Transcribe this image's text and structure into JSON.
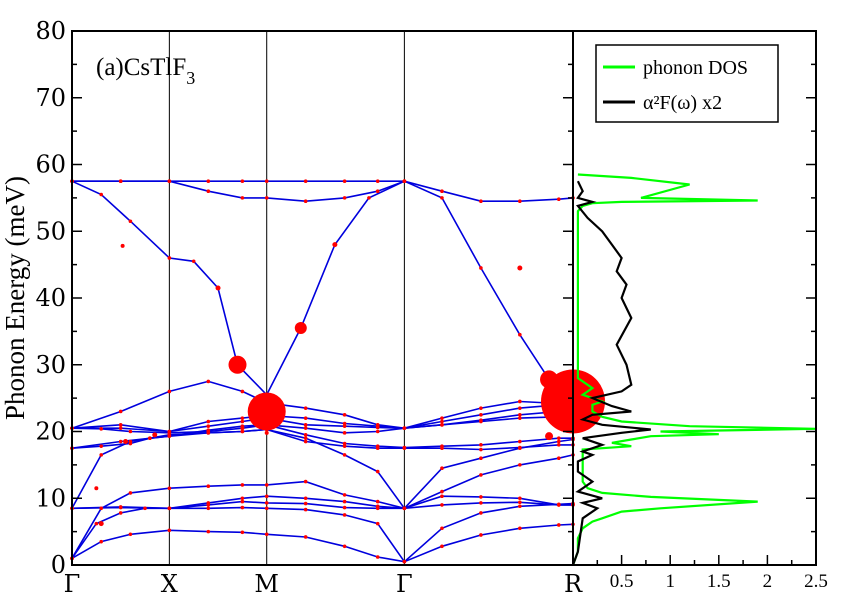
{
  "chart_data": [
    {
      "type": "line",
      "title": "(a)CsTlF",
      "title_subscript": "3",
      "ylabel": "Phonon Energy (meV)",
      "ylim": [
        0,
        80
      ],
      "yticks": [
        0,
        10,
        20,
        30,
        40,
        50,
        60,
        70,
        80
      ],
      "k_points": [
        {
          "label": "Γ",
          "pos": 0.0
        },
        {
          "label": "X",
          "pos": 1.0
        },
        {
          "label": "M",
          "pos": 2.0
        },
        {
          "label": "Γ",
          "pos": 3.414
        },
        {
          "label": "R",
          "pos": 5.146
        }
      ],
      "band_color": "#0000dd",
      "coupling_color": "#ff0000",
      "bands": [
        {
          "x": [
            0,
            0.3,
            0.6,
            1.0,
            1.4,
            1.75,
            2.0,
            2.4,
            2.8,
            3.14,
            3.414,
            3.8,
            4.2,
            4.6,
            5.0,
            5.146
          ],
          "y": [
            1.0,
            3.5,
            4.6,
            5.2,
            5.0,
            4.9,
            4.6,
            4.2,
            2.8,
            1.2,
            0.5,
            2.8,
            4.5,
            5.5,
            6.0,
            6.1
          ]
        },
        {
          "x": [
            0,
            0.25,
            0.5,
            0.75,
            1.0,
            1.4,
            1.75,
            2.0,
            2.4,
            2.8,
            3.14,
            3.414,
            3.8,
            4.2,
            4.6,
            5.0,
            5.146
          ],
          "y": [
            1.0,
            6.2,
            7.8,
            8.5,
            8.5,
            8.5,
            8.6,
            8.5,
            8.3,
            7.5,
            6.2,
            0.5,
            5.5,
            7.8,
            8.8,
            9.1,
            9.2
          ]
        },
        {
          "x": [
            0,
            0.5,
            1.0,
            1.4,
            1.75,
            2.0,
            2.4,
            2.8,
            3.14,
            3.414,
            3.8,
            4.2,
            4.6,
            5.0,
            5.146
          ],
          "y": [
            8.5,
            8.6,
            8.5,
            9.0,
            9.5,
            9.3,
            9.2,
            8.6,
            8.5,
            8.5,
            9.0,
            9.3,
            9.4,
            9.0,
            9.0
          ]
        },
        {
          "x": [
            0,
            0.5,
            1.0,
            1.4,
            1.75,
            2.0,
            2.4,
            2.8,
            3.14,
            3.414,
            3.8,
            4.2,
            4.6,
            5.0,
            5.146
          ],
          "y": [
            8.5,
            8.7,
            8.5,
            9.3,
            10.0,
            10.3,
            10.0,
            9.5,
            8.8,
            8.5,
            10.3,
            10.2,
            10.0,
            9.0,
            9.0
          ]
        },
        {
          "x": [
            0,
            0.3,
            0.6,
            1.0,
            1.4,
            1.75,
            2.0,
            2.4,
            2.8,
            3.14,
            3.414,
            3.8,
            4.2,
            4.6,
            5.0,
            5.146
          ],
          "y": [
            1.0,
            8.5,
            10.8,
            11.5,
            11.8,
            12.0,
            12.0,
            12.5,
            10.5,
            9.5,
            8.5,
            11.0,
            13.5,
            15.0,
            16.0,
            16.5
          ]
        },
        {
          "x": [
            0,
            0.3,
            0.6,
            0.8,
            1.0,
            1.4,
            1.75,
            2.0,
            2.4,
            2.8,
            3.14,
            3.414,
            3.8,
            4.2,
            4.6,
            5.0,
            5.146
          ],
          "y": [
            8.5,
            16.5,
            18.5,
            19.0,
            19.3,
            19.8,
            20.0,
            20.3,
            19.0,
            16.5,
            14.0,
            8.5,
            14.5,
            16.0,
            17.5,
            18.5,
            18.8
          ]
        },
        {
          "x": [
            0,
            0.3,
            0.6,
            0.8,
            1.0,
            1.4,
            1.75,
            2.0,
            2.4,
            2.8,
            3.14,
            3.414,
            3.8,
            4.2,
            4.6,
            5.0,
            5.146
          ],
          "y": [
            17.5,
            17.8,
            18.2,
            19.0,
            19.5,
            19.8,
            20.0,
            20.3,
            18.5,
            17.8,
            17.5,
            17.5,
            17.5,
            17.3,
            17.6,
            18.0,
            18.0
          ]
        },
        {
          "x": [
            0,
            0.5,
            1.0,
            1.4,
            1.75,
            2.0,
            2.4,
            2.8,
            3.14,
            3.414,
            3.8,
            4.2,
            4.6,
            5.0,
            5.146
          ],
          "y": [
            17.5,
            18.5,
            19.3,
            20.2,
            20.8,
            21.0,
            19.5,
            18.2,
            17.8,
            17.6,
            17.8,
            18.0,
            18.5,
            19.0,
            19.0
          ]
        },
        {
          "x": [
            0,
            0.3,
            0.6,
            1.0,
            1.4,
            1.75,
            2.0,
            2.4,
            2.8,
            3.14,
            3.414,
            3.8,
            4.2,
            4.6,
            5.0,
            5.146
          ],
          "y": [
            20.5,
            20.4,
            20.0,
            19.8,
            20.0,
            20.5,
            21.0,
            20.5,
            19.8,
            20.0,
            20.5,
            21.0,
            21.5,
            22.0,
            22.2,
            22.3
          ]
        },
        {
          "x": [
            0,
            0.5,
            1.0,
            1.4,
            1.75,
            2.0,
            2.4,
            2.8,
            3.14,
            3.414,
            3.8,
            4.2,
            4.6,
            5.0,
            5.146
          ],
          "y": [
            20.5,
            20.5,
            20.0,
            20.8,
            21.5,
            22.0,
            21.0,
            20.8,
            20.6,
            20.5,
            21.0,
            21.7,
            22.5,
            23.0,
            23.0
          ]
        },
        {
          "x": [
            0,
            0.5,
            1.0,
            1.4,
            1.75,
            2.0,
            2.4,
            2.8,
            3.14,
            3.414,
            3.8,
            4.2,
            4.6,
            5.0,
            5.146
          ],
          "y": [
            20.5,
            21.0,
            20.0,
            21.5,
            22.0,
            22.4,
            22.0,
            21.2,
            20.8,
            20.5,
            21.5,
            22.5,
            23.5,
            24.0,
            24.0
          ]
        },
        {
          "x": [
            0,
            0.5,
            1.0,
            1.4,
            1.75,
            2.0,
            2.4,
            2.8,
            3.14,
            3.414,
            3.8,
            4.2,
            4.6,
            5.0,
            5.146
          ],
          "y": [
            20.5,
            23.0,
            26.0,
            27.5,
            26.0,
            24.3,
            23.5,
            22.5,
            21.0,
            20.5,
            22.0,
            23.5,
            24.5,
            24.2,
            24.0
          ]
        },
        {
          "x": [
            0,
            0.3,
            0.6,
            1.0,
            1.25,
            1.5,
            1.7,
            2.0,
            2.35,
            2.7,
            3.05,
            3.414
          ],
          "y": [
            57.5,
            55.5,
            51.5,
            46.0,
            45.5,
            41.5,
            30.0,
            25.5,
            35.5,
            48.0,
            55.0,
            57.5
          ]
        },
        {
          "x": [
            3.414,
            3.8,
            4.2,
            4.6,
            4.9,
            5.146
          ],
          "y": [
            57.5,
            55.0,
            44.5,
            34.5,
            27.8,
            24.0
          ]
        },
        {
          "x": [
            0,
            0.5,
            1.0,
            1.4,
            1.75,
            2.0,
            2.4,
            2.8,
            3.14,
            3.414,
            3.8,
            4.2,
            4.6,
            5.0,
            5.146
          ],
          "y": [
            57.5,
            57.5,
            57.5,
            57.5,
            57.5,
            57.5,
            57.5,
            57.5,
            57.5,
            57.5,
            56.0,
            54.5,
            54.5,
            54.8,
            55.0
          ]
        },
        {
          "x": [
            0,
            0.5,
            1.0,
            1.4,
            1.75,
            2.0,
            2.4,
            2.8,
            3.14,
            3.414
          ],
          "y": [
            57.5,
            57.5,
            57.5,
            56.0,
            55.0,
            55.0,
            54.5,
            55.0,
            56.0,
            57.5
          ]
        }
      ],
      "coupling_points": [
        {
          "x": 1.5,
          "y": 41.5,
          "size": 2.5
        },
        {
          "x": 0.52,
          "y": 47.8,
          "size": 2.0
        },
        {
          "x": 1.7,
          "y": 30.0,
          "size": 9
        },
        {
          "x": 2.35,
          "y": 35.5,
          "size": 6
        },
        {
          "x": 2.7,
          "y": 48.0,
          "size": 2.5
        },
        {
          "x": 2.0,
          "y": 23.0,
          "size": 19
        },
        {
          "x": 4.6,
          "y": 44.5,
          "size": 2.5
        },
        {
          "x": 4.9,
          "y": 27.8,
          "size": 9
        },
        {
          "x": 5.146,
          "y": 24.5,
          "size": 32
        },
        {
          "x": 4.9,
          "y": 19.3,
          "size": 4
        },
        {
          "x": 0.3,
          "y": 6.2,
          "size": 2.5
        },
        {
          "x": 0.55,
          "y": 18.5,
          "size": 2.5
        },
        {
          "x": 0.85,
          "y": 19.5,
          "size": 2.5
        },
        {
          "x": 0.25,
          "y": 11.5,
          "size": 2
        },
        {
          "x": 2.0,
          "y": 19.8,
          "size": 2
        },
        {
          "x": 2.0,
          "y": 21.5,
          "size": 2
        },
        {
          "x": 1.75,
          "y": 20.5,
          "size": 2
        }
      ]
    },
    {
      "type": "line",
      "xlim": [
        0,
        2.5
      ],
      "xticks": [
        0.5,
        1,
        1.5,
        2,
        2.5
      ],
      "ylim": [
        0,
        80
      ],
      "legend": [
        {
          "label": "phonon DOS",
          "color": "#00ff00"
        },
        {
          "label": "α²F(ω) x2",
          "color": "#000000"
        }
      ],
      "legend_position": "top-right",
      "series": [
        {
          "name": "phonon DOS",
          "color": "#00ff00",
          "x": [
            0.0,
            0.05,
            0.05,
            0.1,
            0.2,
            0.3,
            0.5,
            0.9,
            1.9,
            0.8,
            0.3,
            0.15,
            0.1,
            0.1,
            0.1,
            0.1,
            0.1,
            0.1,
            0.6,
            0.4,
            0.6,
            0.8,
            1.5,
            0.9,
            2.5,
            1.2,
            0.5,
            0.3,
            0.2,
            0.2,
            0.3,
            0.1,
            0.2,
            0.05,
            0.05,
            0.05,
            0.05,
            0.05,
            0.05,
            0.1,
            0.2,
            0.5,
            1.9,
            0.7,
            1.2,
            0.6,
            0.05
          ],
          "y": [
            0.0,
            2.0,
            4.0,
            5.5,
            6.5,
            7.0,
            8.0,
            8.5,
            9.5,
            10.2,
            10.8,
            11.5,
            12.5,
            13.5,
            14.5,
            15.5,
            16.5,
            17.3,
            17.8,
            18.3,
            18.8,
            19.3,
            19.6,
            20.0,
            20.4,
            20.8,
            21.5,
            22.2,
            23.0,
            24.0,
            24.5,
            25.5,
            26.5,
            28.0,
            35.0,
            45.0,
            50.0,
            52.0,
            53.0,
            53.8,
            54.2,
            54.4,
            54.6,
            55.0,
            57.0,
            58.0,
            58.5
          ]
        },
        {
          "name": "α²F(ω) x2",
          "color": "#000000",
          "x": [
            0.0,
            0.05,
            0.1,
            0.25,
            0.1,
            0.3,
            0.05,
            0.2,
            0.05,
            0.05,
            0.2,
            0.1,
            0.3,
            0.1,
            0.5,
            0.8,
            0.3,
            0.1,
            0.2,
            0.6,
            0.4,
            0.2,
            0.5,
            0.6,
            0.55,
            0.45,
            0.6,
            0.5,
            0.55,
            0.45,
            0.5,
            0.4,
            0.3,
            0.15,
            0.05,
            0.2,
            0.05,
            0.1,
            0.05
          ],
          "y": [
            0.0,
            2.0,
            7.0,
            8.5,
            9.3,
            10.0,
            11.0,
            12.5,
            14.0,
            15.5,
            16.5,
            17.0,
            18.0,
            19.0,
            19.8,
            20.3,
            21.0,
            21.8,
            22.5,
            23.0,
            23.8,
            25.0,
            26.0,
            27.0,
            30.0,
            33.0,
            37.0,
            40.0,
            42.0,
            44.0,
            46.0,
            48.0,
            50.0,
            52.0,
            53.8,
            54.4,
            55.0,
            56.0,
            57.5
          ]
        }
      ]
    }
  ]
}
